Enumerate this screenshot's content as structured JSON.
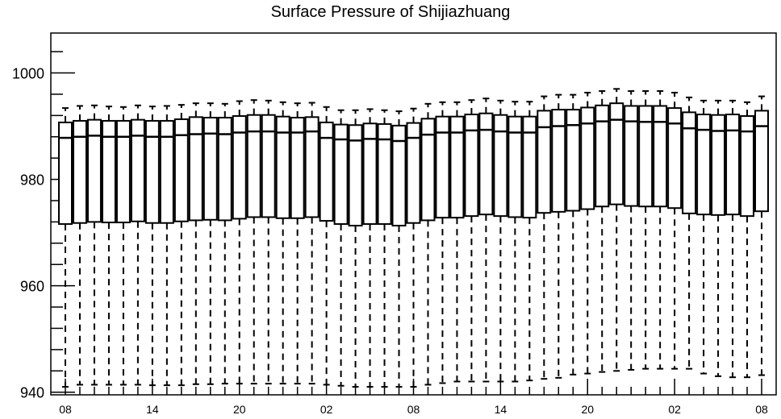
{
  "chart_data": {
    "type": "box",
    "title": "Surface Pressure of Shijiazhuang",
    "xlabel": "",
    "ylabel": "",
    "ylim": [
      939.5,
      1007.5
    ],
    "y_ticks": [
      940,
      960,
      980,
      1000
    ],
    "x_tick_labels": [
      "08",
      "14",
      "20",
      "02",
      "08",
      "14",
      "20",
      "02",
      "08"
    ],
    "x_tick_box_index": [
      0,
      6,
      12,
      18,
      24,
      30,
      36,
      42,
      48
    ],
    "box_count": 49,
    "grid": false,
    "boxes": {
      "whisker_low": [
        941.0,
        941.4,
        941.4,
        941.4,
        941.4,
        941.4,
        941.3,
        941.3,
        941.3,
        941.5,
        941.5,
        941.6,
        941.6,
        941.6,
        941.6,
        941.6,
        941.6,
        941.6,
        941.4,
        941.2,
        941.0,
        941.0,
        941.0,
        941.0,
        941.0,
        941.4,
        941.7,
        942.0,
        942.0,
        942.0,
        942.0,
        942.0,
        942.2,
        942.5,
        942.7,
        943.3,
        943.5,
        943.8,
        944.0,
        944.2,
        944.4,
        944.4,
        944.4,
        944.4,
        943.5,
        943.0,
        942.8,
        942.8,
        943.2
      ],
      "q1": [
        971.6,
        971.8,
        972.0,
        971.9,
        971.9,
        972.1,
        971.8,
        971.8,
        972.1,
        972.3,
        972.4,
        972.3,
        972.6,
        972.9,
        972.9,
        972.7,
        972.7,
        972.9,
        972.2,
        971.6,
        971.3,
        971.6,
        971.6,
        971.3,
        971.8,
        972.3,
        972.8,
        972.8,
        973.1,
        973.4,
        973.1,
        972.9,
        972.8,
        973.7,
        973.9,
        974.1,
        974.4,
        974.9,
        975.3,
        975.0,
        974.9,
        974.9,
        974.6,
        973.6,
        973.4,
        973.3,
        973.4,
        973.1,
        974.0
      ],
      "median": [
        987.8,
        988.0,
        988.2,
        988.0,
        988.0,
        988.2,
        988.0,
        988.0,
        988.3,
        988.5,
        988.6,
        988.5,
        988.8,
        989.0,
        989.0,
        988.8,
        988.8,
        989.0,
        987.8,
        987.5,
        987.3,
        987.6,
        987.5,
        987.2,
        987.8,
        988.4,
        988.8,
        988.8,
        989.2,
        989.3,
        989.0,
        988.8,
        988.8,
        989.8,
        990.0,
        990.2,
        990.5,
        990.9,
        991.2,
        990.9,
        990.8,
        990.8,
        990.5,
        989.6,
        989.3,
        989.1,
        989.2,
        989.0,
        990.0
      ],
      "q3": [
        990.7,
        991.0,
        991.2,
        991.0,
        991.0,
        991.2,
        991.0,
        991.0,
        991.3,
        991.7,
        991.6,
        991.6,
        991.9,
        992.1,
        992.1,
        991.8,
        991.6,
        991.7,
        990.7,
        990.3,
        990.2,
        990.5,
        990.4,
        990.1,
        990.6,
        991.4,
        991.8,
        991.8,
        992.2,
        992.4,
        992.1,
        991.8,
        991.8,
        992.9,
        993.1,
        993.1,
        993.5,
        993.9,
        994.3,
        993.8,
        993.8,
        993.8,
        993.4,
        992.6,
        992.2,
        992.1,
        992.2,
        991.9,
        992.9
      ],
      "whisker_high": [
        993.4,
        993.8,
        993.9,
        993.7,
        993.6,
        993.9,
        993.7,
        993.8,
        994.0,
        994.3,
        994.3,
        994.2,
        994.7,
        994.9,
        994.8,
        994.5,
        994.3,
        994.4,
        993.6,
        993.0,
        993.0,
        993.2,
        993.0,
        992.8,
        993.3,
        994.2,
        994.5,
        994.5,
        994.9,
        995.2,
        994.8,
        994.6,
        994.6,
        995.6,
        995.9,
        995.9,
        996.3,
        996.6,
        997.0,
        996.6,
        996.6,
        996.6,
        996.3,
        995.4,
        994.8,
        994.8,
        994.8,
        994.5,
        995.6
      ]
    }
  }
}
